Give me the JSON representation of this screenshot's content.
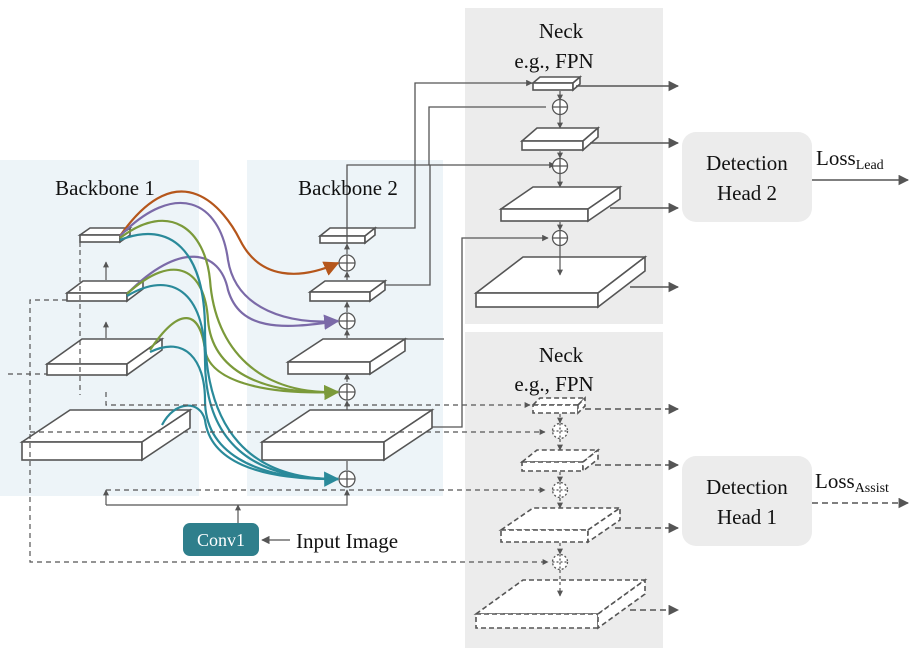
{
  "backbone1": {
    "title": "Backbone 1"
  },
  "backbone2": {
    "title": "Backbone 2"
  },
  "neck_top": {
    "title_line1": "Neck",
    "title_line2": "e.g., FPN"
  },
  "neck_bottom": {
    "title_line1": "Neck",
    "title_line2": "e.g., FPN"
  },
  "head2": {
    "line1": "Detection",
    "line2": "Head 2"
  },
  "head1": {
    "line1": "Detection",
    "line2": "Head 1"
  },
  "loss_lead": {
    "base": "Loss",
    "sub": "Lead"
  },
  "loss_assist": {
    "base": "Loss",
    "sub": "Assist"
  },
  "conv1": {
    "label": "Conv1"
  },
  "input_image": {
    "label": "Input Image"
  },
  "colors": {
    "region_backbone": "#edf4f8",
    "region_neck": "#ececec",
    "head_box": "#ececec",
    "conv1": "#2f7f8c",
    "line": "#555555",
    "orange": "#b5561b",
    "purple": "#7b6aa8",
    "green": "#7b9a3a",
    "teal": "#2a8a9a"
  }
}
